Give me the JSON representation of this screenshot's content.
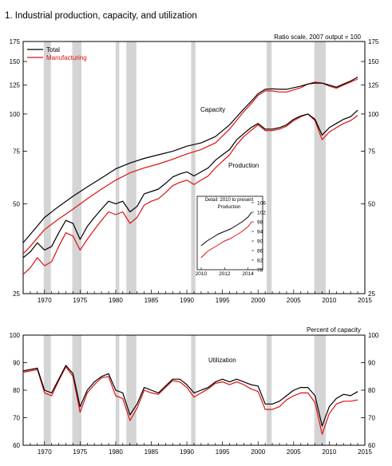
{
  "figure": {
    "title": "1.  Industrial production, capacity, and utilization"
  },
  "colors": {
    "total": "#000000",
    "manufacturing": "#e01010",
    "recession": "#d4d4d4"
  },
  "chart_data": [
    {
      "type": "line",
      "name": "production-capacity",
      "scale_note": "Ratio scale, 2007 output = 100",
      "log_scale": true,
      "ylim": [
        25,
        175
      ],
      "xlim": [
        1967,
        2015
      ],
      "y_ticks": [
        175,
        150,
        125,
        100,
        75,
        50,
        25
      ],
      "x_ticks": [
        1970,
        1975,
        1980,
        1985,
        1990,
        1995,
        2000,
        2005,
        2010,
        2015
      ],
      "legend": {
        "placement": "top-left",
        "items": [
          "Total",
          "Manufacturing"
        ]
      },
      "annotations": [
        "Capacity",
        "Production"
      ],
      "recessions": [
        [
          1969.9,
          1970.9
        ],
        [
          1973.9,
          1975.2
        ],
        [
          1980.0,
          1980.5
        ],
        [
          1981.5,
          1982.9
        ],
        [
          1990.6,
          1991.2
        ],
        [
          2001.2,
          2001.9
        ],
        [
          2007.9,
          2009.5
        ]
      ],
      "series": [
        {
          "name": "Total",
          "role": "Capacity",
          "x": [
            1967,
            1968,
            1970,
            1972,
            1974,
            1976,
            1978,
            1980,
            1982,
            1984,
            1986,
            1988,
            1990,
            1992,
            1994,
            1996,
            1998,
            1999,
            2000,
            2001,
            2002,
            2003,
            2004,
            2006,
            2007,
            2008,
            2009,
            2010,
            2011,
            2012,
            2013,
            2014
          ],
          "values": [
            37,
            39.5,
            45,
            49,
            53,
            57,
            61,
            65.5,
            68.5,
            71,
            73,
            75,
            78,
            80,
            84,
            92,
            104,
            110,
            117,
            121,
            121.5,
            121,
            121,
            124,
            126,
            127,
            127,
            125,
            123,
            126,
            129,
            133
          ]
        },
        {
          "name": "Manufacturing",
          "role": "Capacity",
          "x": [
            1967,
            1968,
            1970,
            1972,
            1974,
            1976,
            1978,
            1980,
            1982,
            1984,
            1986,
            1988,
            1990,
            1992,
            1994,
            1996,
            1998,
            1999,
            2000,
            2001,
            2002,
            2003,
            2004,
            2006,
            2007,
            2008,
            2009,
            2010,
            2011,
            2012,
            2013,
            2014
          ],
          "values": [
            34,
            36,
            41,
            44.5,
            48,
            52,
            56,
            60,
            63.5,
            66,
            68,
            70.5,
            73.5,
            76,
            80,
            89,
            102,
            108,
            115.5,
            119.5,
            119.5,
            118.5,
            118.5,
            122.5,
            126,
            128,
            127,
            124,
            122,
            125,
            128,
            131
          ]
        },
        {
          "name": "Total",
          "role": "Production",
          "x": [
            1967,
            1968,
            1969,
            1970,
            1971,
            1972,
            1973,
            1974,
            1975,
            1976,
            1977,
            1978,
            1979,
            1980,
            1981,
            1982,
            1983,
            1984,
            1985,
            1986,
            1987,
            1988,
            1989,
            1990,
            1991,
            1992,
            1993,
            1994,
            1995,
            1996,
            1997,
            1998,
            1999,
            2000,
            2001,
            2002,
            2003,
            2004,
            2005,
            2006,
            2007,
            2008,
            2009,
            2010,
            2011,
            2012,
            2013,
            2014
          ],
          "values": [
            33,
            34.5,
            37,
            35,
            36,
            40,
            44,
            43,
            38,
            42,
            45,
            48,
            51,
            50,
            51,
            47,
            49,
            54,
            55,
            56,
            58.5,
            61.5,
            63,
            64,
            62,
            64,
            66,
            70,
            73,
            76,
            82,
            86,
            90,
            93,
            89,
            89,
            90,
            92,
            96,
            98.5,
            100,
            96,
            85,
            90,
            93,
            96,
            98,
            103
          ]
        },
        {
          "name": "Manufacturing",
          "role": "Production",
          "x": [
            1967,
            1968,
            1969,
            1970,
            1971,
            1972,
            1973,
            1974,
            1975,
            1976,
            1977,
            1978,
            1979,
            1980,
            1981,
            1982,
            1983,
            1984,
            1985,
            1986,
            1987,
            1988,
            1989,
            1990,
            1991,
            1992,
            1993,
            1994,
            1995,
            1996,
            1997,
            1998,
            1999,
            2000,
            2001,
            2002,
            2003,
            2004,
            2005,
            2006,
            2007,
            2008,
            2009,
            2010,
            2011,
            2012,
            2013,
            2014
          ],
          "values": [
            29,
            30.5,
            33,
            31,
            32,
            36,
            40,
            39,
            35,
            38,
            41,
            44,
            47,
            46,
            47,
            43,
            45,
            49.5,
            51,
            52,
            54.5,
            57.5,
            59,
            60,
            58,
            60,
            62,
            66,
            69.5,
            73,
            79,
            84,
            88,
            92,
            88,
            88,
            89,
            91,
            95,
            98,
            100,
            95,
            82,
            87,
            90,
            93,
            95,
            99
          ]
        }
      ]
    },
    {
      "type": "line",
      "name": "inset-production",
      "title": "Detail: 2010 to present",
      "series_label": "Production",
      "xlim": [
        2009.8,
        2014.5
      ],
      "ylim": [
        78,
        106
      ],
      "y_ticks": [
        106,
        102,
        98,
        94,
        90,
        86,
        82,
        78
      ],
      "x_ticks": [
        2010,
        2012,
        2014
      ],
      "series": [
        {
          "name": "Total",
          "x": [
            2010,
            2010.5,
            2011,
            2011.5,
            2012,
            2012.5,
            2013,
            2013.5,
            2014,
            2014.3
          ],
          "values": [
            88,
            90,
            91.5,
            93,
            94,
            95,
            96.5,
            98,
            100,
            102
          ]
        },
        {
          "name": "Manufacturing",
          "x": [
            2010,
            2010.5,
            2011,
            2011.5,
            2012,
            2012.5,
            2013,
            2013.5,
            2014,
            2014.3
          ],
          "values": [
            83,
            85.5,
            87,
            88.5,
            90,
            91,
            92.5,
            94,
            96,
            98
          ]
        }
      ]
    },
    {
      "type": "line",
      "name": "utilization",
      "unit_label": "Percent of capacity",
      "annotation": "Utilization",
      "ylim": [
        60,
        100
      ],
      "xlim": [
        1967,
        2015
      ],
      "y_ticks": [
        100,
        90,
        80,
        70,
        60
      ],
      "x_ticks": [
        1970,
        1975,
        1980,
        1985,
        1990,
        1995,
        2000,
        2005,
        2010,
        2015
      ],
      "recessions": [
        [
          1969.9,
          1970.9
        ],
        [
          1973.9,
          1975.2
        ],
        [
          1980.0,
          1980.5
        ],
        [
          1981.5,
          1982.9
        ],
        [
          1990.6,
          1991.2
        ],
        [
          2001.2,
          2001.9
        ],
        [
          2007.9,
          2009.5
        ]
      ],
      "series": [
        {
          "name": "Total",
          "x": [
            1967,
            1968,
            1969,
            1970,
            1971,
            1972,
            1973,
            1974,
            1975,
            1976,
            1977,
            1978,
            1979,
            1980,
            1981,
            1982,
            1983,
            1984,
            1985,
            1986,
            1987,
            1988,
            1989,
            1990,
            1991,
            1992,
            1993,
            1994,
            1995,
            1996,
            1997,
            1998,
            1999,
            2000,
            2001,
            2002,
            2003,
            2004,
            2005,
            2006,
            2007,
            2008,
            2009,
            2010,
            2011,
            2012,
            2013,
            2014
          ],
          "values": [
            87,
            87.5,
            88,
            80,
            79,
            84,
            89,
            86,
            74,
            80,
            83,
            85,
            86,
            80,
            79,
            71,
            75,
            81,
            80,
            79,
            81.5,
            84,
            84,
            82,
            79,
            80,
            81,
            83,
            84,
            83,
            84,
            83,
            82,
            81.5,
            75,
            75,
            76,
            78,
            80,
            81,
            81,
            78,
            67,
            74,
            77,
            78.5,
            78,
            79.5
          ]
        },
        {
          "name": "Manufacturing",
          "x": [
            1967,
            1968,
            1969,
            1970,
            1971,
            1972,
            1973,
            1974,
            1975,
            1976,
            1977,
            1978,
            1979,
            1980,
            1981,
            1982,
            1983,
            1984,
            1985,
            1986,
            1987,
            1988,
            1989,
            1990,
            1991,
            1992,
            1993,
            1994,
            1995,
            1996,
            1997,
            1998,
            1999,
            2000,
            2001,
            2002,
            2003,
            2004,
            2005,
            2006,
            2007,
            2008,
            2009,
            2010,
            2011,
            2012,
            2013,
            2014
          ],
          "values": [
            86.5,
            87,
            87.5,
            79,
            78,
            83.5,
            88.5,
            85,
            72,
            79,
            82,
            84.5,
            85,
            78,
            77,
            69,
            73.5,
            80,
            79,
            78.5,
            81,
            83.5,
            83,
            81,
            77.5,
            79,
            80.5,
            82.5,
            83,
            82,
            83,
            82,
            80.5,
            79.5,
            73,
            73,
            74,
            76.5,
            78,
            79,
            79,
            75.5,
            64,
            71.5,
            75,
            76,
            76,
            76.5
          ]
        }
      ]
    }
  ]
}
